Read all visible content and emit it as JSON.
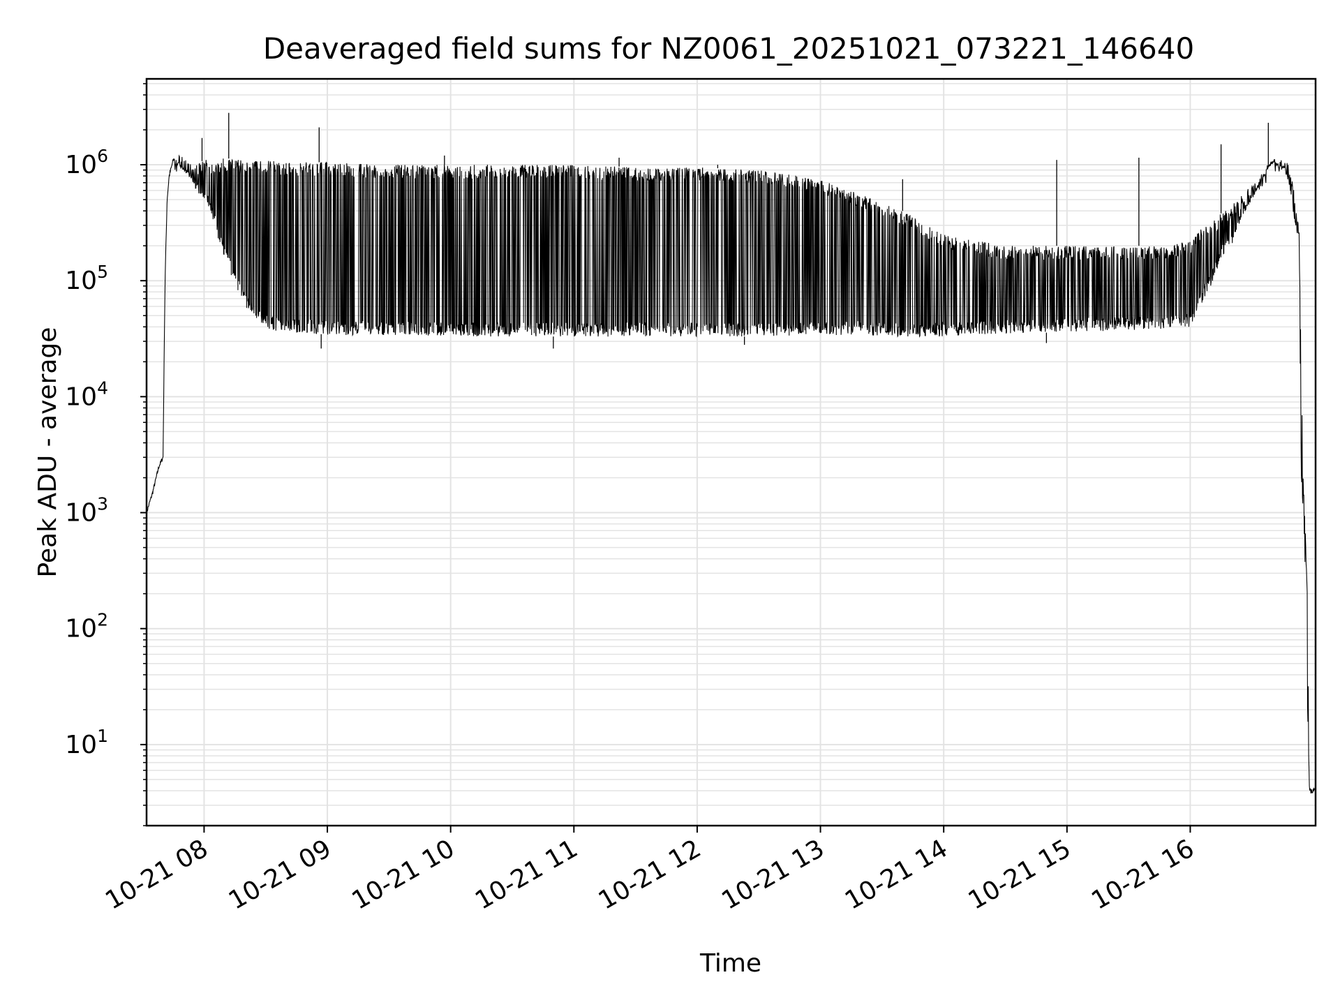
{
  "chart_data": {
    "type": "line",
    "title": "Deaveraged field sums for NZ0061_20251021_073221_146640",
    "xlabel": "Time",
    "ylabel": "Peak ADU - average",
    "yscale": "log",
    "ylim": [
      2,
      5500000
    ],
    "xlim": [
      "2025-10-21 07:32",
      "2025-10-21 17:01"
    ],
    "grid": true,
    "legend": "none",
    "line_color": "#000000",
    "grid_color": "#e3e3e3",
    "x_ticks": [
      {
        "label": "10-21 08",
        "t": "2025-10-21 08:00"
      },
      {
        "label": "10-21 09",
        "t": "2025-10-21 09:00"
      },
      {
        "label": "10-21 10",
        "t": "2025-10-21 10:00"
      },
      {
        "label": "10-21 11",
        "t": "2025-10-21 11:00"
      },
      {
        "label": "10-21 12",
        "t": "2025-10-21 12:00"
      },
      {
        "label": "10-21 13",
        "t": "2025-10-21 13:00"
      },
      {
        "label": "10-21 14",
        "t": "2025-10-21 14:00"
      },
      {
        "label": "10-21 15",
        "t": "2025-10-21 15:00"
      },
      {
        "label": "10-21 16",
        "t": "2025-10-21 16:00"
      }
    ],
    "y_ticks": [
      {
        "base": "10",
        "exp": "1",
        "value": 10
      },
      {
        "base": "10",
        "exp": "2",
        "value": 100
      },
      {
        "base": "10",
        "exp": "3",
        "value": 1000
      },
      {
        "base": "10",
        "exp": "4",
        "value": 10000
      },
      {
        "base": "10",
        "exp": "5",
        "value": 100000
      },
      {
        "base": "10",
        "exp": "6",
        "value": 1000000
      }
    ],
    "series": [
      {
        "x": [
          "2025-10-21 07:32",
          "2025-10-21 07:35",
          "2025-10-21 07:38",
          "2025-10-21 07:40",
          "2025-10-21 07:41",
          "2025-10-21 07:42",
          "2025-10-21 07:43",
          "2025-10-21 07:45",
          "2025-10-21 07:48",
          "2025-10-21 07:52",
          "2025-10-21 07:56",
          "2025-10-21 08:00",
          "2025-10-21 08:05",
          "2025-10-21 08:10",
          "2025-10-21 08:15",
          "2025-10-21 08:20",
          "2025-10-21 08:25",
          "2025-10-21 08:30",
          "2025-10-21 08:40",
          "2025-10-21 08:55",
          "2025-10-21 09:00",
          "2025-10-21 09:30",
          "2025-10-21 10:00",
          "2025-10-21 10:30",
          "2025-10-21 11:00",
          "2025-10-21 11:30",
          "2025-10-21 12:00",
          "2025-10-21 12:30",
          "2025-10-21 13:00",
          "2025-10-21 13:20",
          "2025-10-21 13:40",
          "2025-10-21 14:00",
          "2025-10-21 14:30",
          "2025-10-21 15:00",
          "2025-10-21 15:30",
          "2025-10-21 15:50",
          "2025-10-21 16:00",
          "2025-10-21 16:05",
          "2025-10-21 16:10",
          "2025-10-21 16:15",
          "2025-10-21 16:20",
          "2025-10-21 16:25",
          "2025-10-21 16:30",
          "2025-10-21 16:35",
          "2025-10-21 16:40",
          "2025-10-21 16:43",
          "2025-10-21 16:46",
          "2025-10-21 16:48",
          "2025-10-21 16:50",
          "2025-10-21 16:52",
          "2025-10-21 16:53",
          "2025-10-21 16:54",
          "2025-10-21 16:55",
          "2025-10-21 16:56",
          "2025-10-21 16:57",
          "2025-10-21 16:58",
          "2025-10-21 16:59",
          "2025-10-21 17:01"
        ],
        "upper": [
          1000,
          1500,
          2500,
          3000,
          100000,
          500000,
          800000,
          1100000,
          1200000,
          1100000,
          1000000,
          1100000,
          1100000,
          1150000,
          1100000,
          1100000,
          1100000,
          1100000,
          1050000,
          1050000,
          1050000,
          1000000,
          1000000,
          1000000,
          1000000,
          950000,
          950000,
          900000,
          750000,
          550000,
          400000,
          250000,
          200000,
          200000,
          200000,
          200000,
          220000,
          280000,
          320000,
          380000,
          450000,
          550000,
          700000,
          850000,
          1050000,
          1150000,
          1100000,
          1000000,
          800000,
          350000,
          300000,
          20000,
          2000,
          800,
          200,
          4,
          4,
          4
        ],
        "lower": [
          1000,
          1500,
          2500,
          3000,
          100000,
          500000,
          800000,
          1000000,
          1000000,
          800000,
          600000,
          500000,
          300000,
          150000,
          90000,
          60000,
          45000,
          38000,
          36000,
          35000,
          34000,
          34000,
          33000,
          33000,
          33000,
          33000,
          33000,
          33000,
          34000,
          34000,
          33000,
          33000,
          35000,
          36000,
          37000,
          38000,
          40000,
          60000,
          90000,
          150000,
          200000,
          350000,
          500000,
          750000,
          950000,
          1000000,
          900000,
          700000,
          400000,
          250000,
          250000,
          2000,
          1000,
          300,
          20,
          4,
          4,
          4
        ],
        "spikes": [
          {
            "x": "2025-10-21 07:59",
            "y": 1700000
          },
          {
            "x": "2025-10-21 08:12",
            "y": 2800000
          },
          {
            "x": "2025-10-21 08:56",
            "y": 2100000
          },
          {
            "x": "2025-10-21 09:57",
            "y": 1200000
          },
          {
            "x": "2025-10-21 11:22",
            "y": 1150000
          },
          {
            "x": "2025-10-21 12:10",
            "y": 1000000
          },
          {
            "x": "2025-10-21 13:40",
            "y": 750000
          },
          {
            "x": "2025-10-21 14:55",
            "y": 1100000
          },
          {
            "x": "2025-10-21 15:35",
            "y": 1150000
          },
          {
            "x": "2025-10-21 16:15",
            "y": 1500000
          },
          {
            "x": "2025-10-21 16:38",
            "y": 2300000
          }
        ],
        "dips": [
          {
            "x": "2025-10-21 08:57",
            "y": 26000
          },
          {
            "x": "2025-10-21 10:50",
            "y": 26000
          },
          {
            "x": "2025-10-21 12:23",
            "y": 28000
          },
          {
            "x": "2025-10-21 14:50",
            "y": 29000
          }
        ]
      }
    ]
  }
}
